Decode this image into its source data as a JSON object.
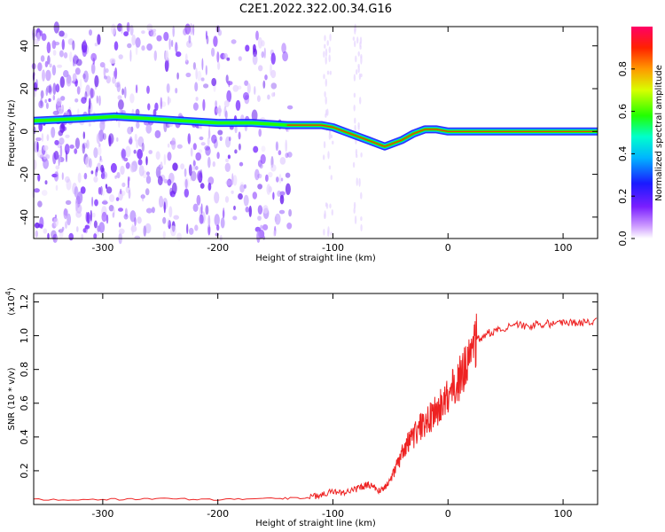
{
  "title": "C2E1.2022.322.00.34.G16",
  "chart_data": [
    {
      "type": "heatmap",
      "xlabel": "Height of straight line (km)",
      "ylabel": "Frequency (Hz)",
      "xlim": [
        -360,
        130
      ],
      "ylim": [
        -50,
        49
      ],
      "xticks": [
        -300,
        -200,
        -100,
        0,
        100
      ],
      "yticks": [
        -40,
        -20,
        0,
        20,
        40
      ],
      "colorbar": {
        "label": "Normalized spectral amplitude",
        "range": [
          0,
          1
        ],
        "ticks": [
          "0.0",
          "0.2",
          "0.4",
          "0.6",
          "0.8"
        ]
      },
      "ridge": {
        "x": [
          -360,
          -320,
          -290,
          -260,
          -230,
          -200,
          -170,
          -140,
          -130,
          -120,
          -110,
          -100,
          -90,
          -80,
          -70,
          -60,
          -55,
          -50,
          -40,
          -30,
          -20,
          -10,
          0,
          50,
          100,
          130
        ],
        "y": [
          5,
          6,
          7,
          6,
          5,
          4,
          4,
          3,
          3,
          3,
          3,
          2,
          0,
          -2,
          -4,
          -6,
          -7,
          -6,
          -4,
          -1,
          1,
          1,
          0,
          0,
          0,
          0
        ]
      }
    },
    {
      "type": "line",
      "xlabel": "Height of straight line (km)",
      "ylabel": "SNR (10 * v/v)",
      "yscale_label": "(x10",
      "yscale_exp": "4",
      "xlim": [
        -360,
        130
      ],
      "ylim": [
        0,
        1.25
      ],
      "xticks": [
        -300,
        -200,
        -100,
        0,
        100
      ],
      "yticks": [
        "0.2",
        "0.4",
        "0.6",
        "0.8",
        "1.0",
        "1.2"
      ],
      "series": [
        {
          "color": "#ee2222",
          "x": [
            -360,
            -300,
            -250,
            -200,
            -150,
            -120,
            -110,
            -100,
            -90,
            -80,
            -75,
            -70,
            -65,
            -60,
            -55,
            -50,
            -45,
            -40,
            -35,
            -30,
            -25,
            -20,
            -15,
            -10,
            -5,
            0,
            5,
            10,
            15,
            20,
            25,
            30,
            40,
            50,
            60,
            70,
            80,
            90,
            100,
            110,
            120,
            130
          ],
          "y": [
            0.03,
            0.03,
            0.035,
            0.03,
            0.035,
            0.04,
            0.06,
            0.08,
            0.07,
            0.09,
            0.1,
            0.12,
            0.1,
            0.08,
            0.1,
            0.15,
            0.22,
            0.3,
            0.36,
            0.4,
            0.45,
            0.48,
            0.52,
            0.55,
            0.6,
            0.65,
            0.7,
            0.75,
            0.82,
            0.9,
            0.97,
            1.0,
            1.03,
            1.05,
            1.06,
            1.06,
            1.07,
            1.07,
            1.07,
            1.08,
            1.08,
            1.08
          ]
        }
      ]
    }
  ]
}
